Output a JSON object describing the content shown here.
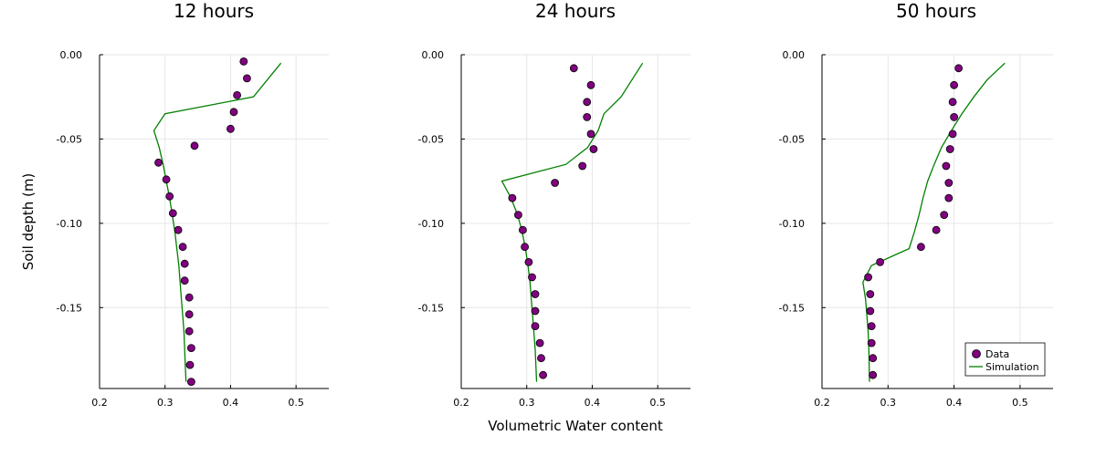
{
  "chart_data": [
    {
      "type": "scatter",
      "title": "12 hours",
      "xlim": [
        0.2,
        0.55
      ],
      "ylim": [
        -0.198,
        0.0
      ],
      "xticks": [
        "0.2",
        "0.3",
        "0.4",
        "0.5"
      ],
      "yticks": [
        "0.00",
        "-0.05",
        "-0.10",
        "-0.15"
      ],
      "grid": true,
      "series": [
        {
          "name": "Data",
          "kind": "scatter",
          "color": "#800080",
          "x": [
            0.42,
            0.425,
            0.41,
            0.405,
            0.4,
            0.345,
            0.29,
            0.302,
            0.307,
            0.312,
            0.32,
            0.327,
            0.33,
            0.33,
            0.337,
            0.337,
            0.337,
            0.34,
            0.338,
            0.34
          ],
          "y": [
            -0.004,
            -0.014,
            -0.024,
            -0.034,
            -0.044,
            -0.054,
            -0.064,
            -0.074,
            -0.084,
            -0.094,
            -0.104,
            -0.114,
            -0.124,
            -0.134,
            -0.144,
            -0.154,
            -0.164,
            -0.174,
            -0.184,
            -0.194
          ]
        },
        {
          "name": "Simulation",
          "kind": "line",
          "color": "#008000",
          "x": [
            0.477,
            0.435,
            0.3,
            0.283,
            0.291,
            0.297,
            0.302,
            0.307,
            0.311,
            0.315,
            0.318,
            0.321,
            0.323,
            0.325,
            0.327,
            0.329,
            0.33,
            0.331,
            0.332
          ],
          "y": [
            -0.005,
            -0.025,
            -0.035,
            -0.045,
            -0.055,
            -0.065,
            -0.075,
            -0.085,
            -0.095,
            -0.105,
            -0.115,
            -0.125,
            -0.135,
            -0.145,
            -0.155,
            -0.165,
            -0.175,
            -0.185,
            -0.194
          ]
        }
      ]
    },
    {
      "type": "scatter",
      "title": "24 hours",
      "xlabel": "Volumetric Water content",
      "xlim": [
        0.2,
        0.55
      ],
      "ylim": [
        -0.198,
        0.0
      ],
      "xticks": [
        "0.2",
        "0.3",
        "0.4",
        "0.5"
      ],
      "yticks": [
        "0.00",
        "-0.05",
        "-0.10",
        "-0.15"
      ],
      "grid": true,
      "series": [
        {
          "name": "Data",
          "kind": "scatter",
          "color": "#800080",
          "x": [
            0.372,
            0.398,
            0.392,
            0.392,
            0.398,
            0.402,
            0.385,
            0.343,
            0.278,
            0.287,
            0.294,
            0.297,
            0.303,
            0.308,
            0.313,
            0.313,
            0.313,
            0.32,
            0.322,
            0.325
          ],
          "y": [
            -0.008,
            -0.018,
            -0.028,
            -0.037,
            -0.047,
            -0.056,
            -0.066,
            -0.076,
            -0.085,
            -0.095,
            -0.104,
            -0.114,
            -0.123,
            -0.132,
            -0.142,
            -0.152,
            -0.161,
            -0.171,
            -0.18,
            -0.19
          ]
        },
        {
          "name": "Simulation",
          "kind": "line",
          "color": "#008000",
          "x": [
            0.477,
            0.444,
            0.418,
            0.409,
            0.393,
            0.36,
            0.262,
            0.276,
            0.286,
            0.293,
            0.298,
            0.302,
            0.305,
            0.307,
            0.309,
            0.311,
            0.313,
            0.314,
            0.315
          ],
          "y": [
            -0.005,
            -0.025,
            -0.035,
            -0.045,
            -0.055,
            -0.065,
            -0.075,
            -0.085,
            -0.095,
            -0.105,
            -0.115,
            -0.125,
            -0.135,
            -0.145,
            -0.155,
            -0.165,
            -0.175,
            -0.185,
            -0.194
          ]
        }
      ]
    },
    {
      "type": "scatter",
      "title": "50 hours",
      "xlim": [
        0.2,
        0.55
      ],
      "ylim": [
        -0.198,
        0.0
      ],
      "xticks": [
        "0.2",
        "0.3",
        "0.4",
        "0.5"
      ],
      "yticks": [
        "0.00",
        "-0.05",
        "-0.10",
        "-0.15"
      ],
      "grid": true,
      "legend": "bottom-right",
      "series": [
        {
          "name": "Data",
          "kind": "scatter",
          "color": "#800080",
          "x": [
            0.407,
            0.4,
            0.398,
            0.4,
            0.398,
            0.394,
            0.388,
            0.392,
            0.392,
            0.385,
            0.373,
            0.35,
            0.288,
            0.27,
            0.273,
            0.273,
            0.275,
            0.275,
            0.277,
            0.277
          ],
          "y": [
            -0.008,
            -0.018,
            -0.028,
            -0.037,
            -0.047,
            -0.056,
            -0.066,
            -0.076,
            -0.085,
            -0.095,
            -0.104,
            -0.114,
            -0.123,
            -0.132,
            -0.142,
            -0.152,
            -0.161,
            -0.171,
            -0.18,
            -0.19
          ]
        },
        {
          "name": "Simulation",
          "kind": "line",
          "color": "#008000",
          "x": [
            0.477,
            0.45,
            0.43,
            0.412,
            0.396,
            0.381,
            0.37,
            0.36,
            0.353,
            0.347,
            0.34,
            0.332,
            0.275,
            0.262,
            0.266,
            0.268,
            0.27,
            0.271,
            0.272
          ],
          "y": [
            -0.005,
            -0.015,
            -0.025,
            -0.035,
            -0.045,
            -0.055,
            -0.065,
            -0.075,
            -0.085,
            -0.095,
            -0.105,
            -0.115,
            -0.125,
            -0.135,
            -0.145,
            -0.155,
            -0.165,
            -0.175,
            -0.194
          ]
        }
      ]
    }
  ],
  "shared_ylabel": "Soil depth (m)"
}
